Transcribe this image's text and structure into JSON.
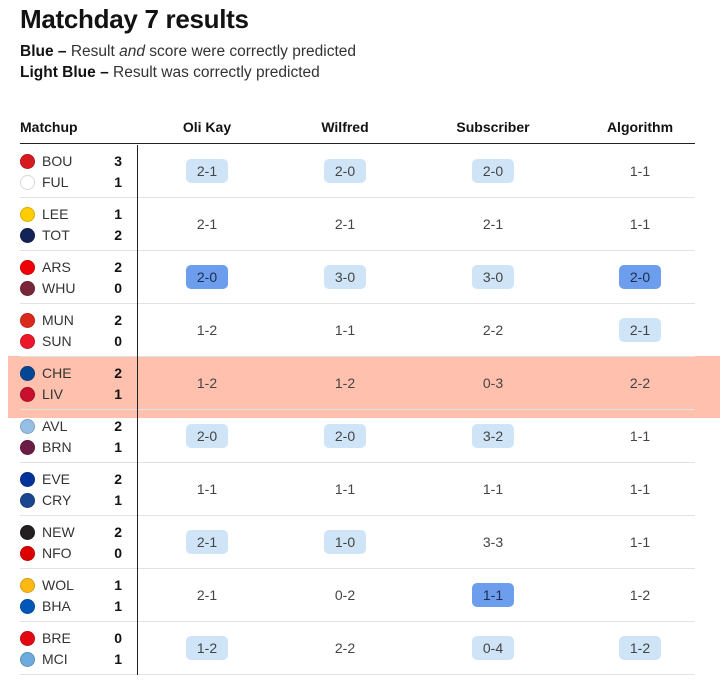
{
  "title": "Matchday 7 results",
  "legend": [
    {
      "label": "Blue –",
      "before": " Result ",
      "em": "and",
      "after": " score were correctly predicted"
    },
    {
      "label": "Light Blue –",
      "before": " Result was correctly predicted",
      "em": "",
      "after": ""
    }
  ],
  "columns": [
    "Matchup",
    "Oli Kay",
    "Wilfred",
    "Subscriber",
    "Algorithm"
  ],
  "colors": {
    "blue": "#6d9eee",
    "light_blue": "#cfe5f7",
    "highlight": "#ffb49a"
  },
  "matches": [
    {
      "home": "BOU",
      "away": "FUL",
      "home_score": "3",
      "away_score": "1",
      "home_color": "#d71920",
      "away_color": "#ffffff",
      "predictions": [
        {
          "v": "2-1",
          "s": "light"
        },
        {
          "v": "2-0",
          "s": "light"
        },
        {
          "v": "2-0",
          "s": "light"
        },
        {
          "v": "1-1",
          "s": "none"
        }
      ]
    },
    {
      "home": "LEE",
      "away": "TOT",
      "home_score": "1",
      "away_score": "2",
      "home_color": "#ffcd00",
      "away_color": "#132257",
      "predictions": [
        {
          "v": "2-1",
          "s": "none"
        },
        {
          "v": "2-1",
          "s": "none"
        },
        {
          "v": "2-1",
          "s": "none"
        },
        {
          "v": "1-1",
          "s": "none"
        }
      ]
    },
    {
      "home": "ARS",
      "away": "WHU",
      "home_score": "2",
      "away_score": "0",
      "home_color": "#ef0107",
      "away_color": "#7a263a",
      "predictions": [
        {
          "v": "2-0",
          "s": "full"
        },
        {
          "v": "3-0",
          "s": "light"
        },
        {
          "v": "3-0",
          "s": "light"
        },
        {
          "v": "2-0",
          "s": "full"
        }
      ]
    },
    {
      "home": "MUN",
      "away": "SUN",
      "home_score": "2",
      "away_score": "0",
      "home_color": "#da291c",
      "away_color": "#eb172b",
      "predictions": [
        {
          "v": "1-2",
          "s": "none"
        },
        {
          "v": "1-1",
          "s": "none"
        },
        {
          "v": "2-2",
          "s": "none"
        },
        {
          "v": "2-1",
          "s": "light"
        }
      ]
    },
    {
      "home": "CHE",
      "away": "LIV",
      "home_score": "2",
      "away_score": "1",
      "home_color": "#034694",
      "away_color": "#c8102e",
      "predictions": [
        {
          "v": "1-2",
          "s": "none"
        },
        {
          "v": "1-2",
          "s": "none"
        },
        {
          "v": "0-3",
          "s": "none"
        },
        {
          "v": "2-2",
          "s": "none"
        }
      ]
    },
    {
      "home": "AVL",
      "away": "BRN",
      "home_score": "2",
      "away_score": "1",
      "home_color": "#95bfe5",
      "away_color": "#6c1d45",
      "predictions": [
        {
          "v": "2-0",
          "s": "light"
        },
        {
          "v": "2-0",
          "s": "light"
        },
        {
          "v": "3-2",
          "s": "light"
        },
        {
          "v": "1-1",
          "s": "none"
        }
      ]
    },
    {
      "home": "EVE",
      "away": "CRY",
      "home_score": "2",
      "away_score": "1",
      "home_color": "#003399",
      "away_color": "#1b458f",
      "predictions": [
        {
          "v": "1-1",
          "s": "none"
        },
        {
          "v": "1-1",
          "s": "none"
        },
        {
          "v": "1-1",
          "s": "none"
        },
        {
          "v": "1-1",
          "s": "none"
        }
      ]
    },
    {
      "home": "NEW",
      "away": "NFO",
      "home_score": "2",
      "away_score": "0",
      "home_color": "#241f20",
      "away_color": "#dd0000",
      "predictions": [
        {
          "v": "2-1",
          "s": "light"
        },
        {
          "v": "1-0",
          "s": "light"
        },
        {
          "v": "3-3",
          "s": "none"
        },
        {
          "v": "1-1",
          "s": "none"
        }
      ]
    },
    {
      "home": "WOL",
      "away": "BHA",
      "home_score": "1",
      "away_score": "1",
      "home_color": "#fdb913",
      "away_color": "#0057b8",
      "predictions": [
        {
          "v": "2-1",
          "s": "none"
        },
        {
          "v": "0-2",
          "s": "none"
        },
        {
          "v": "1-1",
          "s": "full"
        },
        {
          "v": "1-2",
          "s": "none"
        }
      ]
    },
    {
      "home": "BRE",
      "away": "MCI",
      "home_score": "0",
      "away_score": "1",
      "home_color": "#e30613",
      "away_color": "#6cabdd",
      "predictions": [
        {
          "v": "1-2",
          "s": "light"
        },
        {
          "v": "2-2",
          "s": "none"
        },
        {
          "v": "0-4",
          "s": "light"
        },
        {
          "v": "1-2",
          "s": "light"
        }
      ]
    }
  ]
}
